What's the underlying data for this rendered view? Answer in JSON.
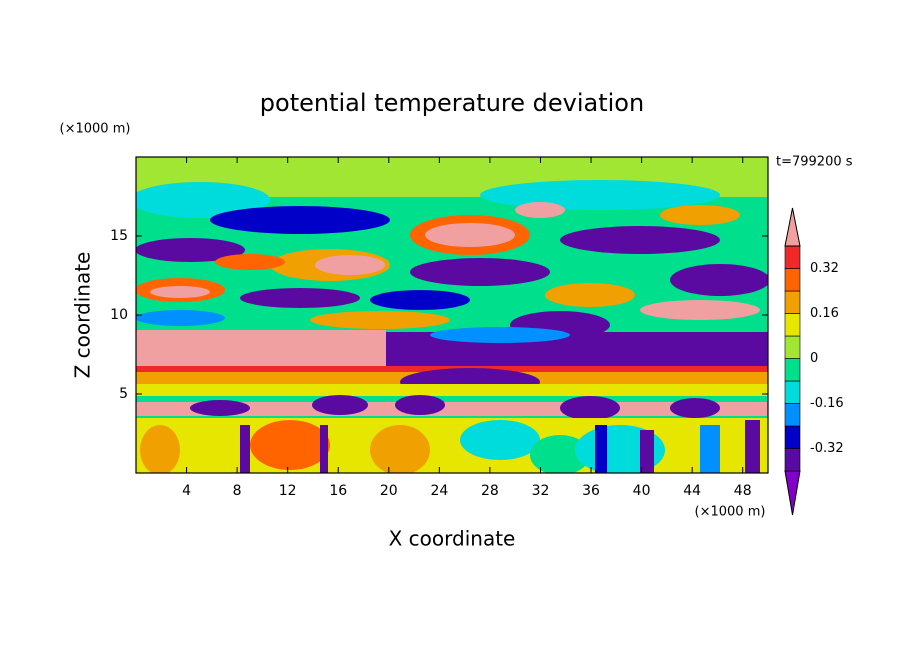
{
  "chart_data": {
    "type": "contour",
    "title": "potential temperature deviation",
    "x_label": "X coordinate",
    "y_label": "Z coordinate",
    "x_unit": "(×1000 m)",
    "y_unit": "(×1000 m)",
    "time_label": "t=799200 s",
    "xlim": [
      0,
      50
    ],
    "xticks": [
      4,
      8,
      12,
      16,
      20,
      24,
      28,
      32,
      36,
      40,
      44,
      48
    ],
    "ylim": [
      0,
      20
    ],
    "yticks": [
      5,
      10,
      15
    ],
    "colorbar": {
      "levels": [
        -0.4,
        -0.32,
        -0.24,
        -0.16,
        -0.08,
        0,
        0.08,
        0.16,
        0.24,
        0.32,
        0.4
      ],
      "colors": [
        "#8200c8",
        "#5a0aa0",
        "#0000c8",
        "#0090ff",
        "#00dcdc",
        "#00e08c",
        "#a0e632",
        "#e6e600",
        "#f0a000",
        "#ff6400",
        "#f02828",
        "#f0a0a0"
      ],
      "ticks": [
        0.32,
        0.16,
        0,
        -0.16,
        -0.32
      ]
    }
  }
}
